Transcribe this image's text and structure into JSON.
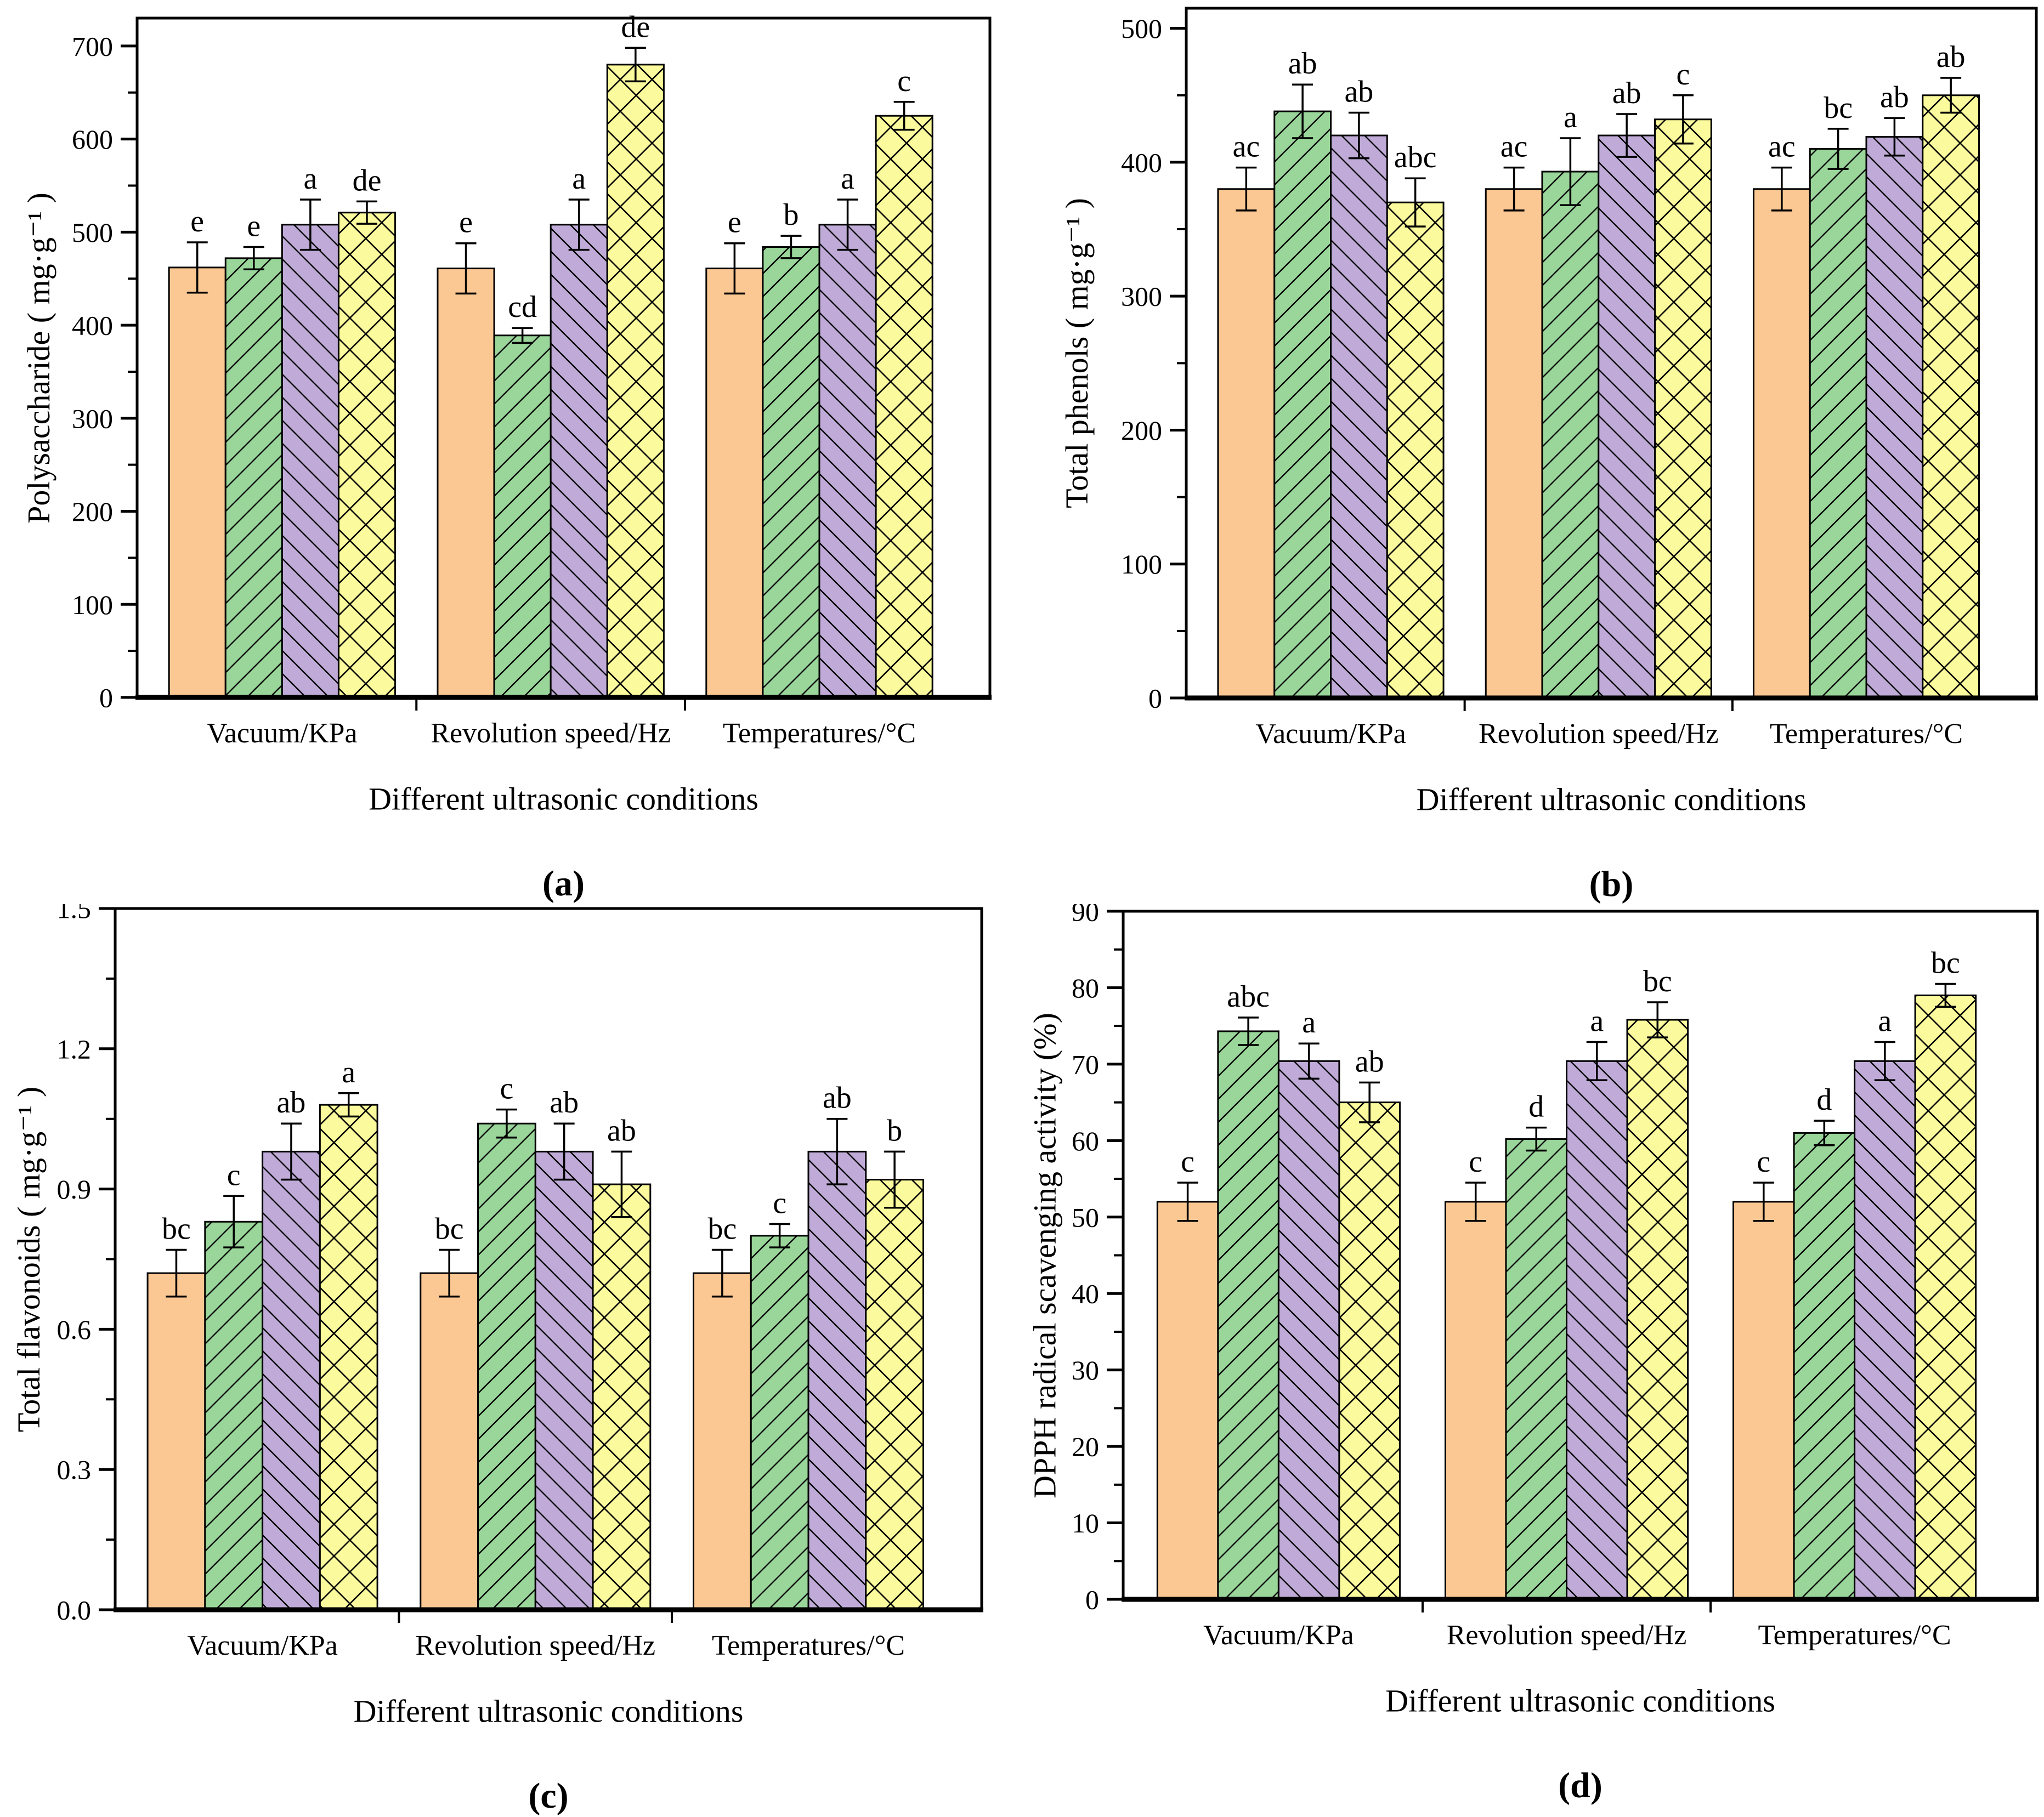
{
  "figure_title": "",
  "style": {
    "background": "#FFFFFF",
    "axis_color": "#000000",
    "error_bar_color": "#000000",
    "series": [
      {
        "name": "bar-style-1",
        "fill": "#FBC893",
        "hatch": "none"
      },
      {
        "name": "bar-style-2",
        "fill": "#9AD69A",
        "hatch": "forward-diagonal"
      },
      {
        "name": "bar-style-3",
        "fill": "#C0ABD8",
        "hatch": "backward-diagonal"
      },
      {
        "name": "bar-style-4",
        "fill": "#FBFB9E",
        "hatch": "cross-diagonal"
      }
    ]
  },
  "chart_data": [
    {
      "id": "a",
      "type": "bar",
      "caption": "(a)",
      "ylabel": "Polysaccharide ( mg·g⁻¹ )",
      "xlabel": "Different ultrasonic conditions",
      "categories": [
        "Vacuum/KPa",
        "Revolution speed/Hz",
        "Temperatures/°C"
      ],
      "ylim": [
        0,
        730
      ],
      "ytick_step": 100,
      "ytick_max": 700,
      "ytick_decimals": 0,
      "grid": false,
      "legend": "none",
      "series": [
        {
          "values": [
            462,
            461,
            461
          ],
          "errors": [
            27,
            27,
            27
          ],
          "letters": [
            "e",
            "e",
            "e"
          ]
        },
        {
          "values": [
            472,
            389,
            484
          ],
          "errors": [
            12,
            8,
            12
          ],
          "letters": [
            "e",
            "cd",
            "b"
          ]
        },
        {
          "values": [
            508,
            508,
            508
          ],
          "errors": [
            27,
            27,
            27
          ],
          "letters": [
            "a",
            "a",
            "a"
          ]
        },
        {
          "values": [
            521,
            680,
            625
          ],
          "errors": [
            12,
            18,
            15
          ],
          "letters": [
            "de",
            "de",
            "c"
          ]
        }
      ]
    },
    {
      "id": "b",
      "type": "bar",
      "caption": "(b)",
      "ylabel": "Total phenols ( mg·g⁻¹ )",
      "xlabel": "Different ultrasonic conditions",
      "categories": [
        "Vacuum/KPa",
        "Revolution speed/Hz",
        "Temperatures/°C"
      ],
      "ylim": [
        0,
        515
      ],
      "ytick_step": 100,
      "ytick_max": 500,
      "ytick_decimals": 0,
      "grid": false,
      "legend": "none",
      "series": [
        {
          "values": [
            380,
            380,
            380
          ],
          "errors": [
            16,
            16,
            16
          ],
          "letters": [
            "ac",
            "ac",
            "ac"
          ]
        },
        {
          "values": [
            438,
            393,
            410
          ],
          "errors": [
            20,
            25,
            15
          ],
          "letters": [
            "ab",
            "a",
            "bc"
          ]
        },
        {
          "values": [
            420,
            420,
            419
          ],
          "errors": [
            17,
            16,
            14
          ],
          "letters": [
            "ab",
            "ab",
            "ab"
          ]
        },
        {
          "values": [
            370,
            432,
            450
          ],
          "errors": [
            18,
            18,
            13
          ],
          "letters": [
            "abc",
            "c",
            "ab"
          ]
        }
      ]
    },
    {
      "id": "c",
      "type": "bar",
      "caption": "(c)",
      "ylabel": "Total flavonoids ( mg·g⁻¹ )",
      "xlabel": "Different ultrasonic conditions",
      "categories": [
        "Vacuum/KPa",
        "Revolution speed/Hz",
        "Temperatures/°C"
      ],
      "ylim": [
        0,
        1.5
      ],
      "ytick_step": 0.3,
      "ytick_max": 1.5,
      "ytick_decimals": 1,
      "grid": false,
      "legend": "none",
      "series": [
        {
          "values": [
            0.72,
            0.72,
            0.72
          ],
          "errors": [
            0.05,
            0.05,
            0.05
          ],
          "letters": [
            "bc",
            "bc",
            "bc"
          ]
        },
        {
          "values": [
            0.83,
            1.04,
            0.8
          ],
          "errors": [
            0.055,
            0.03,
            0.025
          ],
          "letters": [
            "c",
            "c",
            "c"
          ]
        },
        {
          "values": [
            0.98,
            0.98,
            0.98
          ],
          "errors": [
            0.06,
            0.06,
            0.07
          ],
          "letters": [
            "ab",
            "ab",
            "ab"
          ]
        },
        {
          "values": [
            1.08,
            0.91,
            0.92
          ],
          "errors": [
            0.025,
            0.07,
            0.06
          ],
          "letters": [
            "a",
            "ab",
            "b"
          ]
        }
      ]
    },
    {
      "id": "d",
      "type": "bar",
      "caption": "(d)",
      "ylabel": "DPPH radical scavenging activity (%)",
      "xlabel": "Different ultrasonic conditions",
      "categories": [
        "Vacuum/KPa",
        "Revolution speed/Hz",
        "Temperatures/°C"
      ],
      "ylim": [
        0,
        90
      ],
      "ytick_step": 10,
      "ytick_max": 90,
      "ytick_decimals": 0,
      "grid": false,
      "legend": "none",
      "series": [
        {
          "values": [
            52,
            52,
            52
          ],
          "errors": [
            2.5,
            2.5,
            2.5
          ],
          "letters": [
            "c",
            "c",
            "c"
          ]
        },
        {
          "values": [
            74.3,
            60.2,
            61.0
          ],
          "errors": [
            1.8,
            1.5,
            1.6
          ],
          "letters": [
            "abc",
            "d",
            "d"
          ]
        },
        {
          "values": [
            70.4,
            70.4,
            70.4
          ],
          "errors": [
            2.3,
            2.5,
            2.5
          ],
          "letters": [
            "a",
            "a",
            "a"
          ]
        },
        {
          "values": [
            65.0,
            75.8,
            79.0
          ],
          "errors": [
            2.6,
            2.3,
            1.5
          ],
          "letters": [
            "ab",
            "bc",
            "bc"
          ]
        }
      ]
    }
  ]
}
